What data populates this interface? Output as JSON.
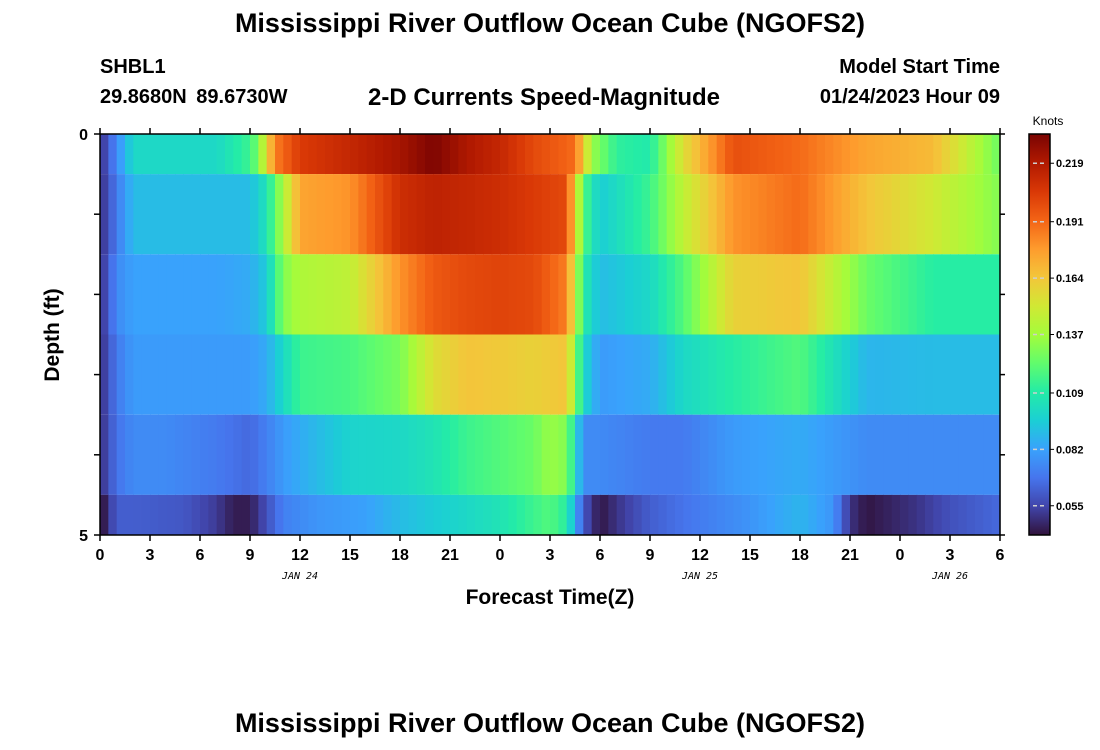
{
  "header": {
    "title": "Mississippi River Outflow Ocean Cube (NGOFS2)",
    "station_name": "SHBL1",
    "station_coords": "29.8680N  89.6730W",
    "subtitle": "2-D Currents Speed-Magnitude",
    "model_start_label": "Model Start Time",
    "model_start_value": "01/24/2023 Hour 09"
  },
  "footer": {
    "title": "Mississippi River Outflow Ocean Cube (NGOFS2)"
  },
  "chart_data": {
    "type": "heatmap",
    "title": "2-D Currents Speed-Magnitude",
    "xlabel": "Forecast Time(Z)",
    "ylabel": "Depth (ft)",
    "x_range": [
      0,
      54
    ],
    "y_range": [
      0,
      5
    ],
    "x_tick_values": [
      0,
      3,
      6,
      9,
      12,
      15,
      18,
      21,
      24,
      27,
      30,
      33,
      36,
      39,
      42,
      45,
      48,
      51,
      54
    ],
    "x_tick_labels": [
      "0",
      "3",
      "6",
      "9",
      "12",
      "15",
      "18",
      "21",
      "0",
      "3",
      "6",
      "9",
      "12",
      "15",
      "18",
      "21",
      "0",
      "3",
      "6"
    ],
    "date_labels": [
      {
        "x": 12,
        "label": "JAN 24"
      },
      {
        "x": 36,
        "label": "JAN 25"
      },
      {
        "x": 51,
        "label": "JAN 26"
      }
    ],
    "y_tick_values": [
      0,
      5
    ],
    "y_tick_labels": [
      "0",
      "5"
    ],
    "colorbar": {
      "label": "Knots",
      "range": [
        0.041,
        0.233
      ],
      "tick_values": [
        0.055,
        0.082,
        0.109,
        0.137,
        0.164,
        0.191,
        0.219
      ],
      "tick_labels": [
        "0.055",
        "0.082",
        "0.109",
        "0.137",
        "0.164",
        "0.191",
        "0.219"
      ],
      "colormap": [
        "#30123b",
        "#4145ab",
        "#4675ed",
        "#39a2fc",
        "#1bcfd4",
        "#24eca6",
        "#61fc6c",
        "#a4fc3b",
        "#d1e834",
        "#f3c63a",
        "#fe9b2d",
        "#f36315",
        "#d93806",
        "#b11901",
        "#7a0402"
      ]
    },
    "layer_depths_ft": [
      0,
      0.5,
      1.5,
      2.5,
      3.5,
      4.5,
      5
    ],
    "series": [
      {
        "layer": 1,
        "time": [
          0,
          1,
          2,
          4,
          7,
          9,
          9.5,
          10.5,
          12,
          15,
          18,
          20,
          22,
          24,
          26,
          28.5,
          29.5,
          31,
          33,
          35,
          38,
          42,
          46,
          50,
          54
        ],
        "speed": [
          0.048,
          0.075,
          0.1,
          0.1,
          0.1,
          0.115,
          0.128,
          0.185,
          0.205,
          0.213,
          0.222,
          0.232,
          0.22,
          0.213,
          0.2,
          0.19,
          0.135,
          0.112,
          0.108,
          0.155,
          0.198,
          0.19,
          0.175,
          0.168,
          0.125
        ]
      },
      {
        "layer": 2,
        "time": [
          0,
          1,
          2,
          4,
          7,
          9,
          10,
          11,
          12,
          15,
          18,
          20,
          22,
          24,
          26,
          28,
          29,
          30,
          33,
          35,
          38,
          42,
          46,
          50,
          54
        ],
        "speed": [
          0.048,
          0.07,
          0.09,
          0.09,
          0.09,
          0.09,
          0.105,
          0.14,
          0.175,
          0.18,
          0.21,
          0.215,
          0.213,
          0.21,
          0.205,
          0.2,
          0.12,
          0.095,
          0.115,
          0.145,
          0.18,
          0.19,
          0.165,
          0.15,
          0.13
        ]
      },
      {
        "layer": 3,
        "time": [
          0,
          1,
          2,
          4,
          7,
          9,
          10,
          11,
          12,
          15,
          18,
          20,
          22,
          24,
          26,
          28,
          29,
          30,
          33,
          35,
          38,
          42,
          46,
          50,
          54
        ],
        "speed": [
          0.048,
          0.075,
          0.082,
          0.082,
          0.082,
          0.085,
          0.095,
          0.13,
          0.14,
          0.145,
          0.18,
          0.195,
          0.2,
          0.202,
          0.2,
          0.185,
          0.11,
          0.09,
          0.1,
          0.12,
          0.16,
          0.165,
          0.125,
          0.11,
          0.11
        ]
      },
      {
        "layer": 4,
        "time": [
          0,
          1,
          2,
          4,
          7,
          9,
          10,
          11,
          12,
          15,
          18,
          20,
          22,
          24,
          26,
          28,
          29,
          30,
          33,
          35,
          38,
          42,
          46,
          50,
          54
        ],
        "speed": [
          0.048,
          0.07,
          0.08,
          0.08,
          0.08,
          0.08,
          0.085,
          0.1,
          0.115,
          0.118,
          0.128,
          0.155,
          0.165,
          0.163,
          0.16,
          0.165,
          0.1,
          0.08,
          0.085,
          0.1,
          0.11,
          0.12,
          0.088,
          0.09,
          0.09
        ]
      },
      {
        "layer": 5,
        "time": [
          0,
          1,
          2,
          4,
          7,
          9,
          10,
          11,
          12,
          15,
          18,
          20,
          22,
          24,
          26,
          27,
          28,
          29,
          30,
          33,
          35,
          38,
          42,
          46,
          50,
          54
        ],
        "speed": [
          0.048,
          0.068,
          0.075,
          0.075,
          0.07,
          0.065,
          0.072,
          0.08,
          0.085,
          0.098,
          0.1,
          0.105,
          0.115,
          0.12,
          0.125,
          0.135,
          0.13,
          0.075,
          0.075,
          0.07,
          0.07,
          0.08,
          0.085,
          0.075,
          0.075,
          0.075
        ]
      },
      {
        "layer": 6,
        "time": [
          0,
          1,
          2,
          5,
          7,
          8,
          9,
          10,
          11,
          13,
          16,
          18,
          20,
          24,
          26,
          27,
          28,
          29,
          30,
          31,
          33,
          35,
          39,
          42,
          44,
          45,
          46,
          49,
          51,
          54
        ],
        "speed": [
          0.038,
          0.062,
          0.062,
          0.06,
          0.052,
          0.044,
          0.044,
          0.058,
          0.072,
          0.078,
          0.082,
          0.09,
          0.095,
          0.105,
          0.115,
          0.12,
          0.11,
          0.06,
          0.042,
          0.05,
          0.062,
          0.068,
          0.078,
          0.088,
          0.078,
          0.05,
          0.042,
          0.05,
          0.058,
          0.065
        ]
      }
    ]
  },
  "plot_text": {
    "xlabel": "Forecast Time(Z)",
    "ylabel": "Depth (ft)",
    "colorbar_label": "Knots"
  }
}
